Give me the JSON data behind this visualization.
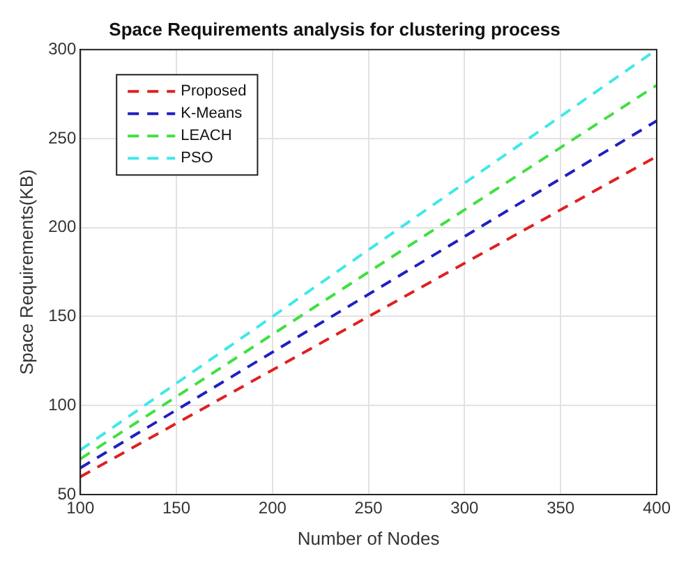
{
  "chart_data": {
    "type": "line",
    "title": "Space Requirements analysis for clustering process",
    "xlabel": "Number of Nodes",
    "ylabel": "Space Requirements(KB)",
    "x": [
      100,
      400
    ],
    "series": [
      {
        "name": "Proposed",
        "color": "#e02020",
        "values": [
          60,
          240
        ]
      },
      {
        "name": "K-Means",
        "color": "#2020c0",
        "values": [
          65,
          260
        ]
      },
      {
        "name": "LEACH",
        "color": "#40e040",
        "values": [
          70,
          280
        ]
      },
      {
        "name": "PSO",
        "color": "#40e8e8",
        "values": [
          75,
          300
        ]
      }
    ],
    "xlim": [
      100,
      400
    ],
    "xticks": [
      100,
      150,
      200,
      250,
      300,
      350,
      400
    ],
    "ylim": [
      50,
      300
    ],
    "yticks": [
      50,
      100,
      150,
      200,
      250,
      300
    ],
    "grid": true,
    "legend": "top left",
    "line_style": "dashed",
    "marker": "none"
  }
}
